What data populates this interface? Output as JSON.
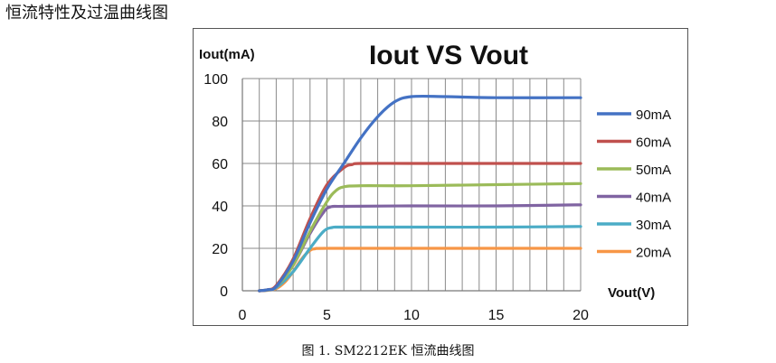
{
  "page": {
    "heading": "恒流特性及过温曲线图",
    "caption": "图 1. SM2212EK  恒流曲线图"
  },
  "chart_data": {
    "type": "line",
    "title": "Iout VS Vout",
    "ylabel": "Iout(mA)",
    "xlabel": "Vout(V)",
    "xlim": [
      0,
      20
    ],
    "ylim": [
      0,
      100
    ],
    "x_ticks": [
      0,
      5,
      10,
      15,
      20
    ],
    "y_ticks": [
      0,
      20,
      40,
      60,
      80,
      100
    ],
    "grid": true,
    "legend_position": "right",
    "series": [
      {
        "name": "90mA",
        "color": "#4472C4",
        "points": [
          [
            1,
            0
          ],
          [
            1.5,
            0.5
          ],
          [
            2,
            2
          ],
          [
            3,
            14
          ],
          [
            4,
            32
          ],
          [
            5,
            48
          ],
          [
            6,
            60
          ],
          [
            7,
            72
          ],
          [
            8,
            82
          ],
          [
            9,
            89
          ],
          [
            10,
            91.5
          ],
          [
            12,
            91.5
          ],
          [
            15,
            91
          ],
          [
            20,
            91
          ]
        ]
      },
      {
        "name": "60mA",
        "color": "#C0504D",
        "points": [
          [
            1,
            0
          ],
          [
            1.5,
            0.5
          ],
          [
            2,
            2.5
          ],
          [
            3,
            15
          ],
          [
            4,
            34
          ],
          [
            5,
            50
          ],
          [
            6,
            58
          ],
          [
            6.5,
            59.5
          ],
          [
            7,
            60
          ],
          [
            10,
            60
          ],
          [
            15,
            60
          ],
          [
            20,
            60
          ]
        ]
      },
      {
        "name": "50mA",
        "color": "#9BBB59",
        "points": [
          [
            1,
            0
          ],
          [
            1.5,
            0.4
          ],
          [
            2,
            2
          ],
          [
            3,
            12
          ],
          [
            4,
            28
          ],
          [
            5,
            42
          ],
          [
            5.5,
            47
          ],
          [
            6,
            49
          ],
          [
            7,
            49.5
          ],
          [
            10,
            49.5
          ],
          [
            15,
            50
          ],
          [
            20,
            50.5
          ]
        ]
      },
      {
        "name": "40mA",
        "color": "#8064A2",
        "points": [
          [
            1,
            0
          ],
          [
            1.5,
            0.4
          ],
          [
            2,
            2
          ],
          [
            3,
            12
          ],
          [
            4,
            27
          ],
          [
            4.8,
            37
          ],
          [
            5.2,
            39.5
          ],
          [
            6,
            39.8
          ],
          [
            10,
            40
          ],
          [
            15,
            40
          ],
          [
            20,
            40.5
          ]
        ]
      },
      {
        "name": "30mA",
        "color": "#4BACC6",
        "points": [
          [
            1,
            0
          ],
          [
            1.5,
            0.3
          ],
          [
            2,
            1.5
          ],
          [
            3,
            9
          ],
          [
            4,
            20
          ],
          [
            4.8,
            28
          ],
          [
            5.3,
            29.8
          ],
          [
            6,
            30
          ],
          [
            10,
            30
          ],
          [
            15,
            30
          ],
          [
            20,
            30.3
          ]
        ]
      },
      {
        "name": "20mA",
        "color": "#F79646",
        "points": [
          [
            1,
            0
          ],
          [
            1.5,
            0.2
          ],
          [
            2,
            1
          ],
          [
            2.5,
            4
          ],
          [
            3,
            9
          ],
          [
            3.5,
            15
          ],
          [
            4,
            19
          ],
          [
            4.3,
            19.8
          ],
          [
            5,
            20
          ],
          [
            10,
            20
          ],
          [
            15,
            20
          ],
          [
            20,
            20
          ]
        ]
      }
    ]
  }
}
